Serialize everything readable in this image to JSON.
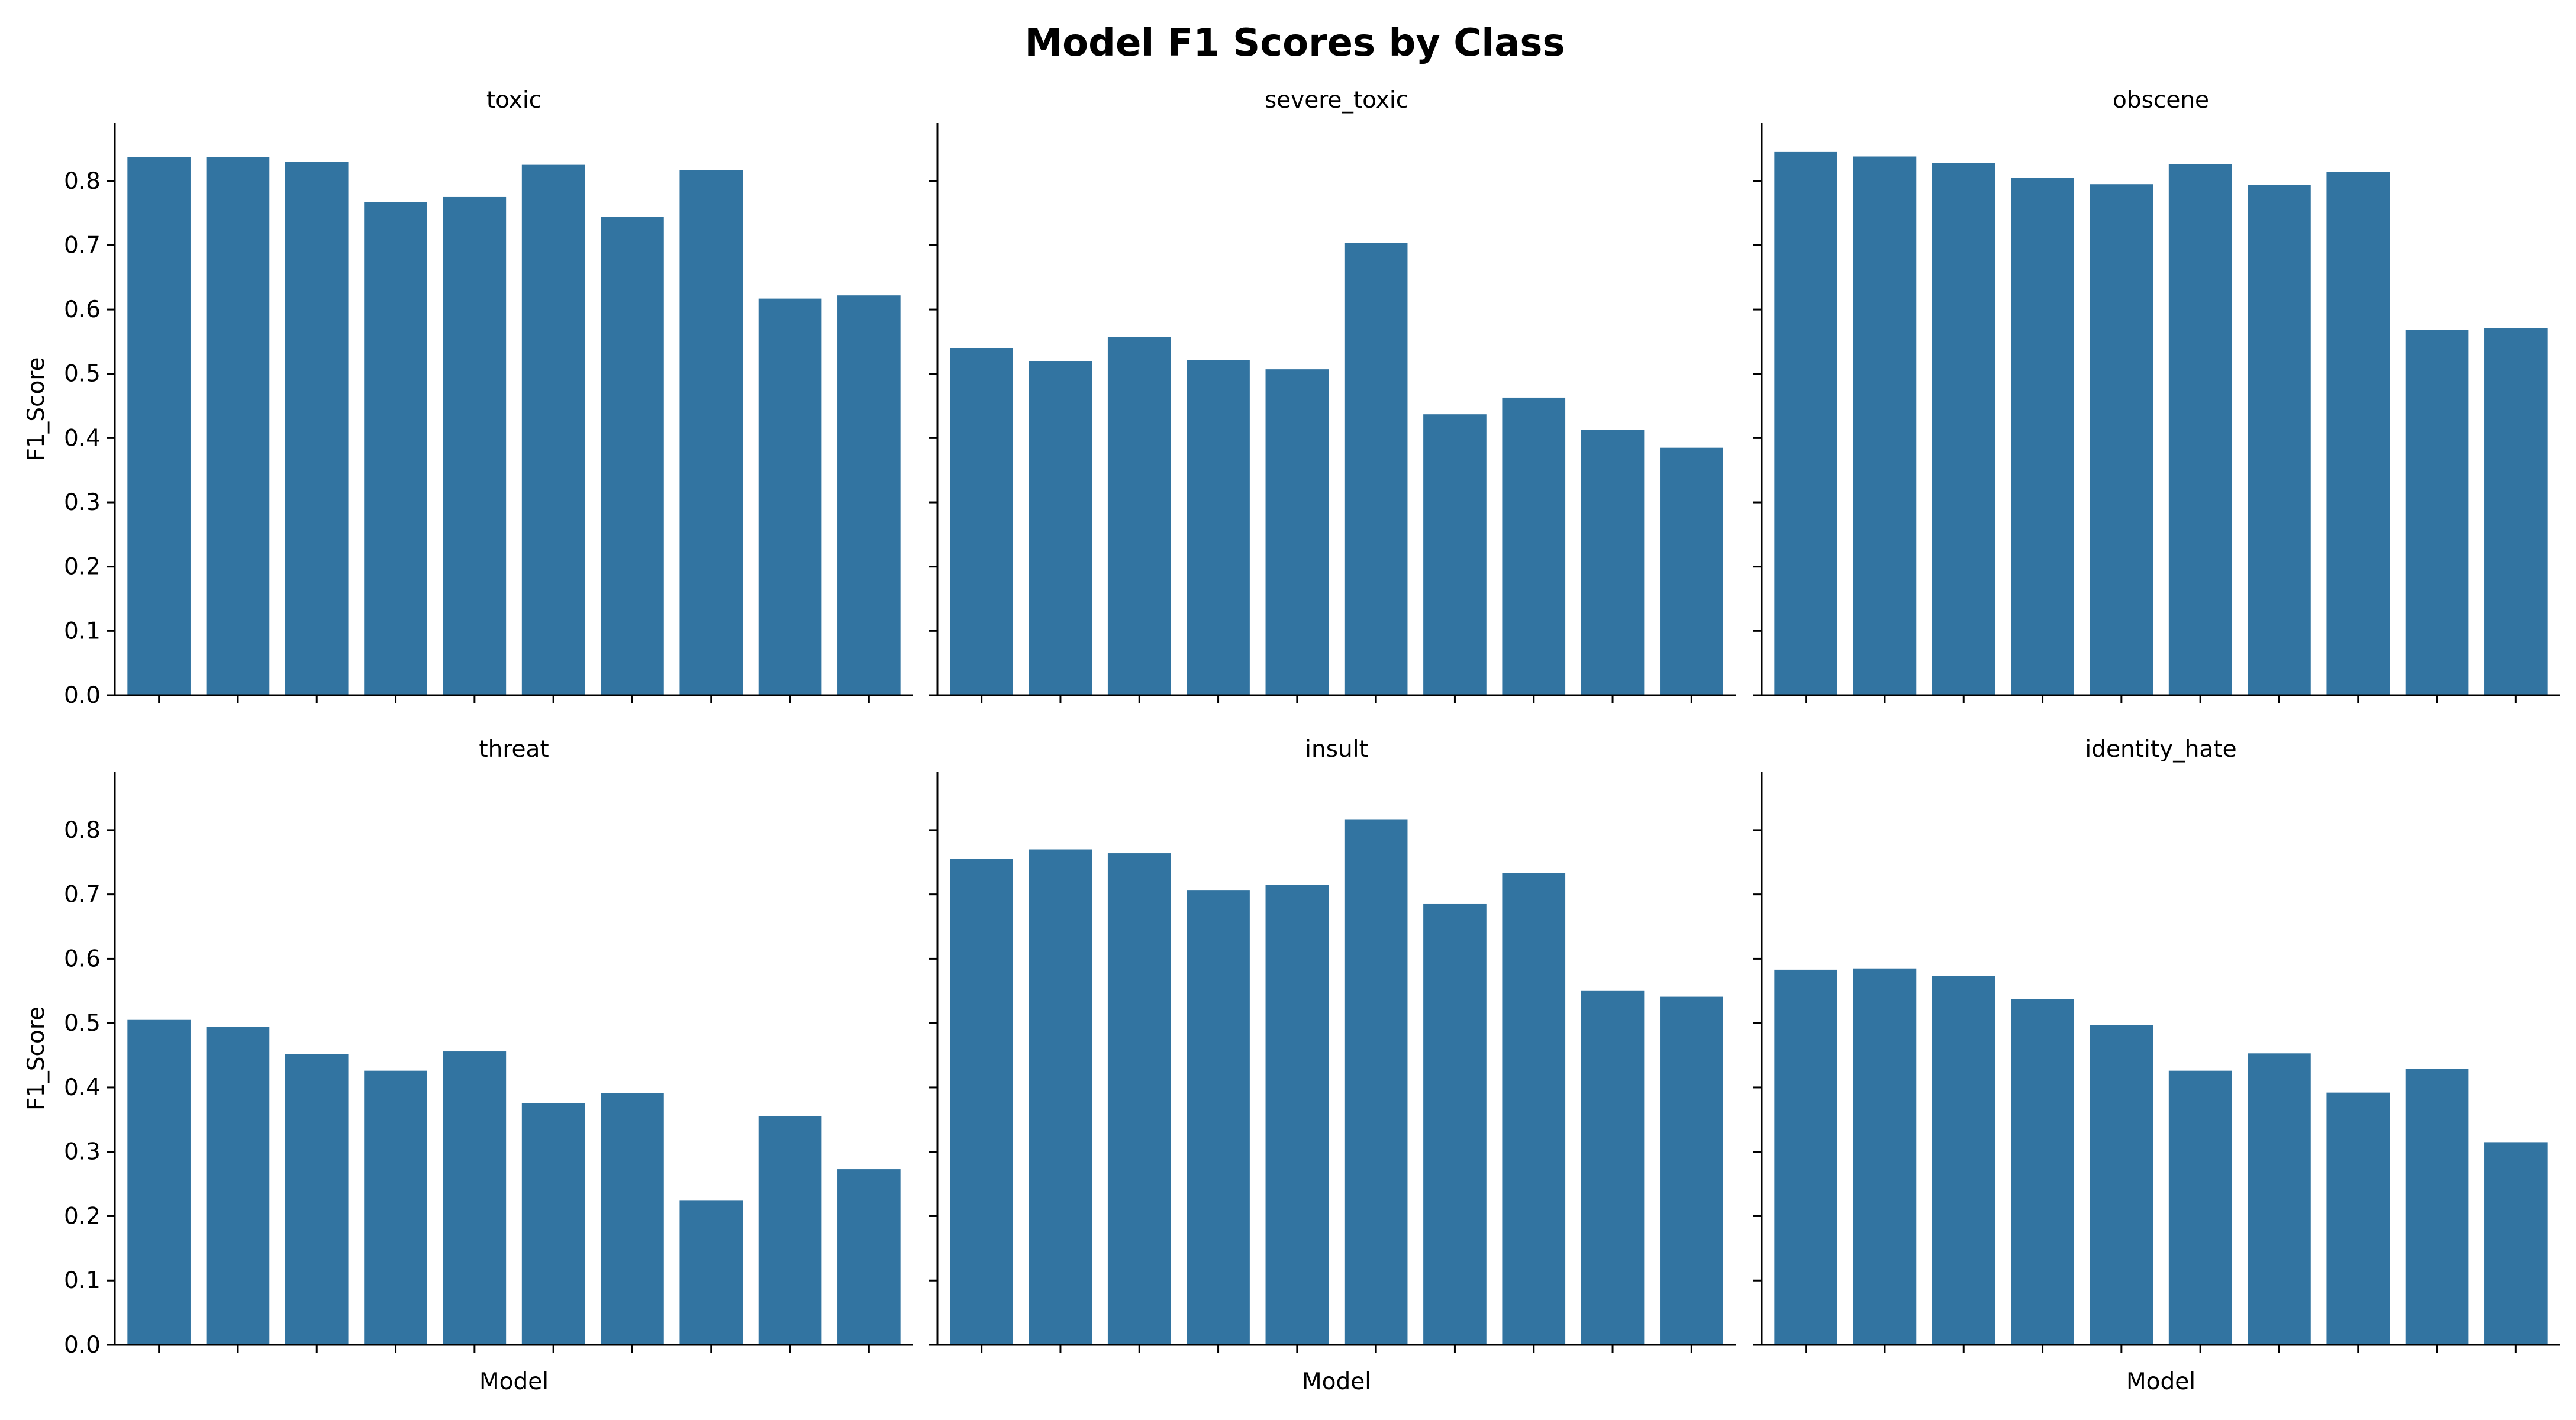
{
  "chart_data": {
    "type": "bar",
    "title": "Model F1 Scores by Class",
    "ylabel": "F1_Score",
    "xlabel": "Model",
    "ylim": [
      0,
      0.89
    ],
    "yticks": [
      0.0,
      0.1,
      0.2,
      0.3,
      0.4,
      0.5,
      0.6,
      0.7,
      0.8
    ],
    "yticks_text": [
      "0.0",
      "0.1",
      "0.2",
      "0.3",
      "0.4",
      "0.5",
      "0.6",
      "0.7",
      "0.8"
    ],
    "n_models": 10,
    "grid": false,
    "bar_color": "#3274a1",
    "panels": [
      {
        "title": "toxic",
        "values": [
          0.837,
          0.837,
          0.83,
          0.767,
          0.775,
          0.825,
          0.744,
          0.817,
          0.617,
          0.622
        ]
      },
      {
        "title": "severe_toxic",
        "values": [
          0.54,
          0.52,
          0.557,
          0.521,
          0.507,
          0.704,
          0.437,
          0.463,
          0.413,
          0.385
        ]
      },
      {
        "title": "obscene",
        "values": [
          0.845,
          0.838,
          0.828,
          0.805,
          0.795,
          0.826,
          0.794,
          0.814,
          0.568,
          0.571
        ]
      },
      {
        "title": "threat",
        "values": [
          0.505,
          0.494,
          0.452,
          0.426,
          0.456,
          0.376,
          0.391,
          0.224,
          0.355,
          0.273
        ]
      },
      {
        "title": "insult",
        "values": [
          0.755,
          0.77,
          0.764,
          0.706,
          0.715,
          0.816,
          0.685,
          0.733,
          0.55,
          0.541
        ]
      },
      {
        "title": "identity_hate",
        "values": [
          0.583,
          0.585,
          0.573,
          0.537,
          0.497,
          0.426,
          0.453,
          0.392,
          0.429,
          0.315
        ]
      }
    ]
  }
}
